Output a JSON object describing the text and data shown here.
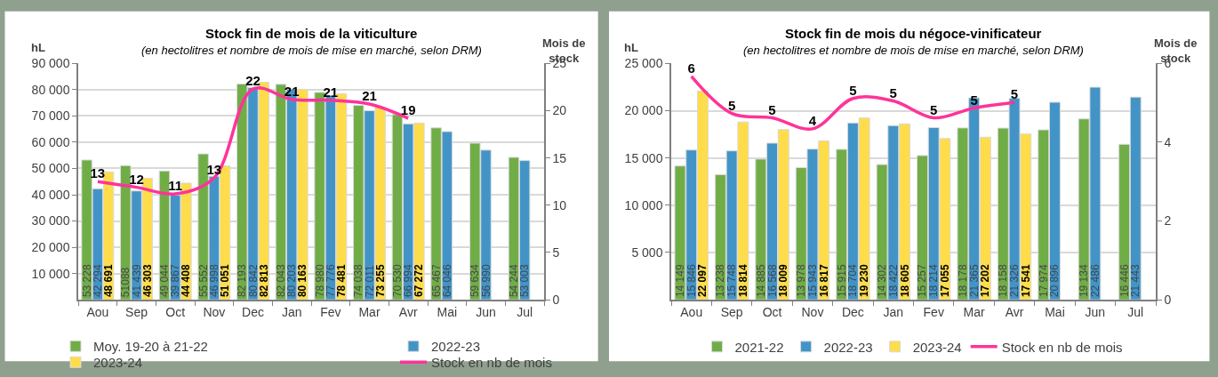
{
  "chart_data": [
    {
      "type": "bar",
      "title": "Stock fin de mois de la viticulture",
      "subtitle": "(en hectolitres et nombre de mois de mise en marché, selon DRM)",
      "ylabel": "hL",
      "y2label": "Mois de stock",
      "categories": [
        "Aou",
        "Sep",
        "Oct",
        "Nov",
        "Dec",
        "Jan",
        "Fev",
        "Mar",
        "Avr",
        "Mai",
        "Jun",
        "Jul"
      ],
      "series": [
        {
          "name": "Moy. 19-20 à 21-22",
          "color": "#70ad47",
          "values": [
            53228,
            51088,
            49044,
            55552,
            82193,
            82043,
            78980,
            74038,
            70530,
            65467,
            59634,
            54244
          ],
          "value_labels": [
            "53 228",
            "51088",
            "49 044",
            "55 552",
            "82 193",
            "82 043",
            "78 980",
            "74 038",
            "70 530",
            "65 467",
            "59 634",
            "54 244"
          ]
        },
        {
          "name": "2022-23",
          "color": "#4394c6",
          "values": [
            42294,
            41439,
            39867,
            46998,
            80842,
            80203,
            77776,
            72011,
            66994,
            64046,
            56990,
            53003
          ],
          "value_labels": [
            "42 294",
            "41 439",
            "39 867",
            "46 998",
            "80 842",
            "80 203",
            "77 776",
            "72 011",
            "66 994",
            "64 046",
            "56 990",
            "53 003"
          ]
        },
        {
          "name": "2023-24",
          "color": "#ffdd4a",
          "values": [
            48691,
            46303,
            44408,
            51051,
            82813,
            80163,
            78481,
            73255,
            67272,
            null,
            null,
            null
          ],
          "value_labels": [
            "48 691",
            "46 303",
            "44 408",
            "51 051",
            "82 813",
            "80 163",
            "78 481",
            "73 255",
            "67 272",
            null,
            null,
            null
          ]
        },
        {
          "name": "Stock en nb de mois",
          "type": "line",
          "axis": "y2",
          "color": "#ff3399",
          "values": [
            12.5,
            11.9,
            11.2,
            12.9,
            22.3,
            21.2,
            21.1,
            20.7,
            19.2,
            null,
            null,
            null
          ],
          "value_labels": [
            "13",
            "12",
            "11",
            "13",
            "22",
            "21",
            "21",
            "21",
            "19",
            null,
            null,
            null
          ]
        }
      ],
      "ylim": [
        0,
        90000
      ],
      "yticks": [
        {
          "value": 10000,
          "label": "10 000"
        },
        {
          "value": 20000,
          "label": "20 000"
        },
        {
          "value": 30000,
          "label": "30 000"
        },
        {
          "value": 40000,
          "label": "40 000"
        },
        {
          "value": 50000,
          "label": "50 000"
        },
        {
          "value": 60000,
          "label": "60 000"
        },
        {
          "value": 70000,
          "label": "70 000"
        },
        {
          "value": 80000,
          "label": "80 000"
        },
        {
          "value": 90000,
          "label": "90 000"
        }
      ],
      "y2lim": [
        0,
        25
      ],
      "y2ticks": [
        0,
        5,
        10,
        15,
        20,
        25
      ],
      "grid": "y",
      "legend": "bottom"
    },
    {
      "type": "bar",
      "title": "Stock fin de mois du négoce-vinificateur",
      "subtitle": "(en hectolitres et nombre de mois de mise en marché, selon DRM)",
      "ylabel": "hL",
      "y2label": "Mois de stock",
      "categories": [
        "Aou",
        "Sep",
        "Oct",
        "Nov",
        "Dec",
        "Jan",
        "Fev",
        "Mar",
        "Avr",
        "Mai",
        "Jun",
        "Jul"
      ],
      "series": [
        {
          "name": "2021-22",
          "color": "#70ad47",
          "values": [
            14149,
            13238,
            14885,
            13978,
            15915,
            14302,
            15257,
            18178,
            18158,
            17974,
            19134,
            16446
          ],
          "value_labels": [
            "14 149",
            "13 238",
            "14 885",
            "13 978",
            "15 915",
            "14 302",
            "15 257",
            "18 178",
            "18 158",
            "17 974",
            "19 134",
            "16 446"
          ]
        },
        {
          "name": "2022-23",
          "color": "#4394c6",
          "values": [
            15846,
            15748,
            16568,
            15943,
            18704,
            18422,
            18214,
            21365,
            21326,
            20896,
            22486,
            21443
          ],
          "value_labels": [
            "15 846",
            "15 748",
            "16 568",
            "15 943",
            "18 704",
            "18 422",
            "18 214",
            "21 365",
            "21 326",
            "20 896",
            "22 486",
            "21 443"
          ]
        },
        {
          "name": "2023-24",
          "color": "#ffdd4a",
          "values": [
            22097,
            18814,
            18009,
            16817,
            19230,
            18605,
            17055,
            17202,
            17541,
            null,
            null,
            null
          ],
          "value_labels": [
            "22 097",
            "18 814",
            "18 009",
            "16 817",
            "19 230",
            "18 605",
            "17 055",
            "17 202",
            "17 541",
            null,
            null,
            null
          ]
        },
        {
          "name": "Stock en nb de mois",
          "type": "line",
          "axis": "y2",
          "color": "#ff3399",
          "values": [
            5.67,
            4.73,
            4.62,
            4.34,
            5.11,
            5.05,
            4.62,
            4.87,
            5.01,
            null,
            null,
            null
          ],
          "value_labels": [
            "6",
            "5",
            "5",
            "4",
            "5",
            "5",
            "5",
            "5",
            "5",
            null,
            null,
            null
          ]
        }
      ],
      "ylim": [
        0,
        25000
      ],
      "yticks": [
        {
          "value": 5000,
          "label": "5 000"
        },
        {
          "value": 10000,
          "label": "10 000"
        },
        {
          "value": 15000,
          "label": "15 000"
        },
        {
          "value": 20000,
          "label": "20 000"
        },
        {
          "value": 25000,
          "label": "25 000"
        }
      ],
      "y2lim": [
        0,
        6
      ],
      "y2ticks": [
        0,
        2,
        4,
        6
      ],
      "grid": "y",
      "legend": "bottom"
    }
  ]
}
